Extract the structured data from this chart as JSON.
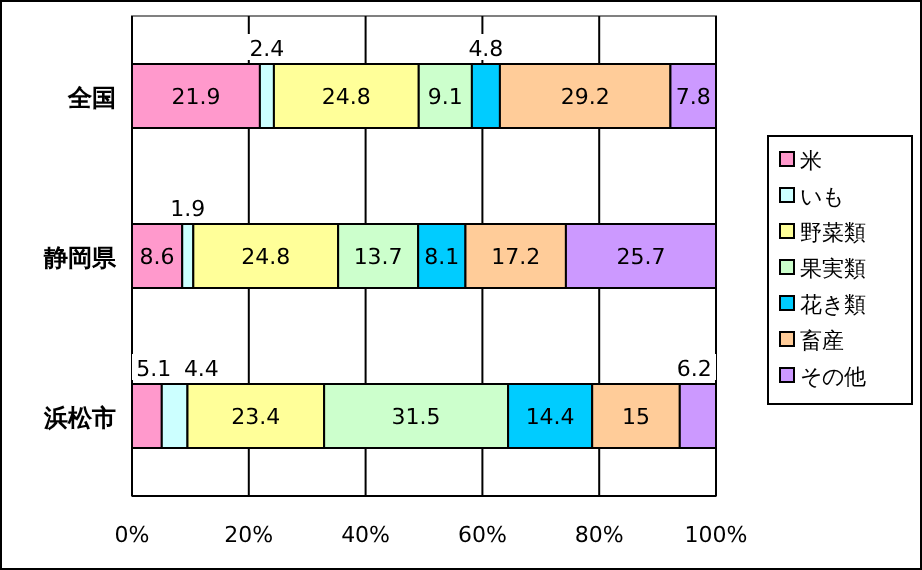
{
  "chart_data": {
    "type": "bar",
    "orientation": "horizontal",
    "stacked": true,
    "data_labels": true,
    "categories": [
      "全国",
      "静岡県",
      "浜松市"
    ],
    "series": [
      {
        "name": "米",
        "color": "#ff99cc",
        "values": [
          21.9,
          8.6,
          5.1
        ]
      },
      {
        "name": "いも",
        "color": "#ccffff",
        "values": [
          2.4,
          1.9,
          4.4
        ]
      },
      {
        "name": "野菜類",
        "color": "#ffff99",
        "values": [
          24.8,
          24.8,
          23.4
        ]
      },
      {
        "name": "果実類",
        "color": "#ccffcc",
        "values": [
          9.1,
          13.7,
          31.5
        ]
      },
      {
        "name": "花き類",
        "color": "#00ccff",
        "values": [
          4.8,
          8.1,
          14.4
        ]
      },
      {
        "name": "畜産",
        "color": "#ffcc99",
        "values": [
          29.2,
          17.2,
          15
        ]
      },
      {
        "name": "その他",
        "color": "#cc99ff",
        "values": [
          7.8,
          25.7,
          6.2
        ]
      }
    ],
    "xlim": [
      0,
      100
    ],
    "xticks": [
      {
        "value": 0,
        "label": "0%"
      },
      {
        "value": 20,
        "label": "20%"
      },
      {
        "value": 40,
        "label": "40%"
      },
      {
        "value": 60,
        "label": "60%"
      },
      {
        "value": 80,
        "label": "80%"
      },
      {
        "value": 100,
        "label": "100%"
      }
    ],
    "grid": "x",
    "legend": "right"
  }
}
